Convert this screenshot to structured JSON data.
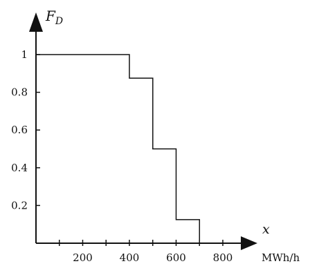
{
  "chart_data": {
    "type": "line",
    "step": true,
    "title": "",
    "ylabel_main": "F",
    "ylabel_sub": "D",
    "xlabel": "x",
    "x_unit": "MWh/h",
    "xlim": [
      0,
      900
    ],
    "ylim": [
      0,
      1.15
    ],
    "x_ticks": [
      100,
      200,
      300,
      400,
      500,
      600,
      700,
      800
    ],
    "x_tick_labels": [
      {
        "value": 200,
        "label": "200"
      },
      {
        "value": 400,
        "label": "400"
      },
      {
        "value": 600,
        "label": "600"
      },
      {
        "value": 800,
        "label": "800"
      }
    ],
    "y_tick_labels": [
      {
        "value": 0.2,
        "label": "0.2"
      },
      {
        "value": 0.4,
        "label": "0.4"
      },
      {
        "value": 0.6,
        "label": "0.6"
      },
      {
        "value": 0.8,
        "label": "0.8"
      },
      {
        "value": 1,
        "label": "1"
      }
    ],
    "x": [
      0,
      400,
      400,
      500,
      500,
      600,
      600,
      700,
      700
    ],
    "y": [
      1,
      1,
      0.875,
      0.875,
      0.5,
      0.5,
      0.125,
      0.125,
      0
    ],
    "grid": false,
    "legend": "none",
    "line_color": "#111111"
  }
}
